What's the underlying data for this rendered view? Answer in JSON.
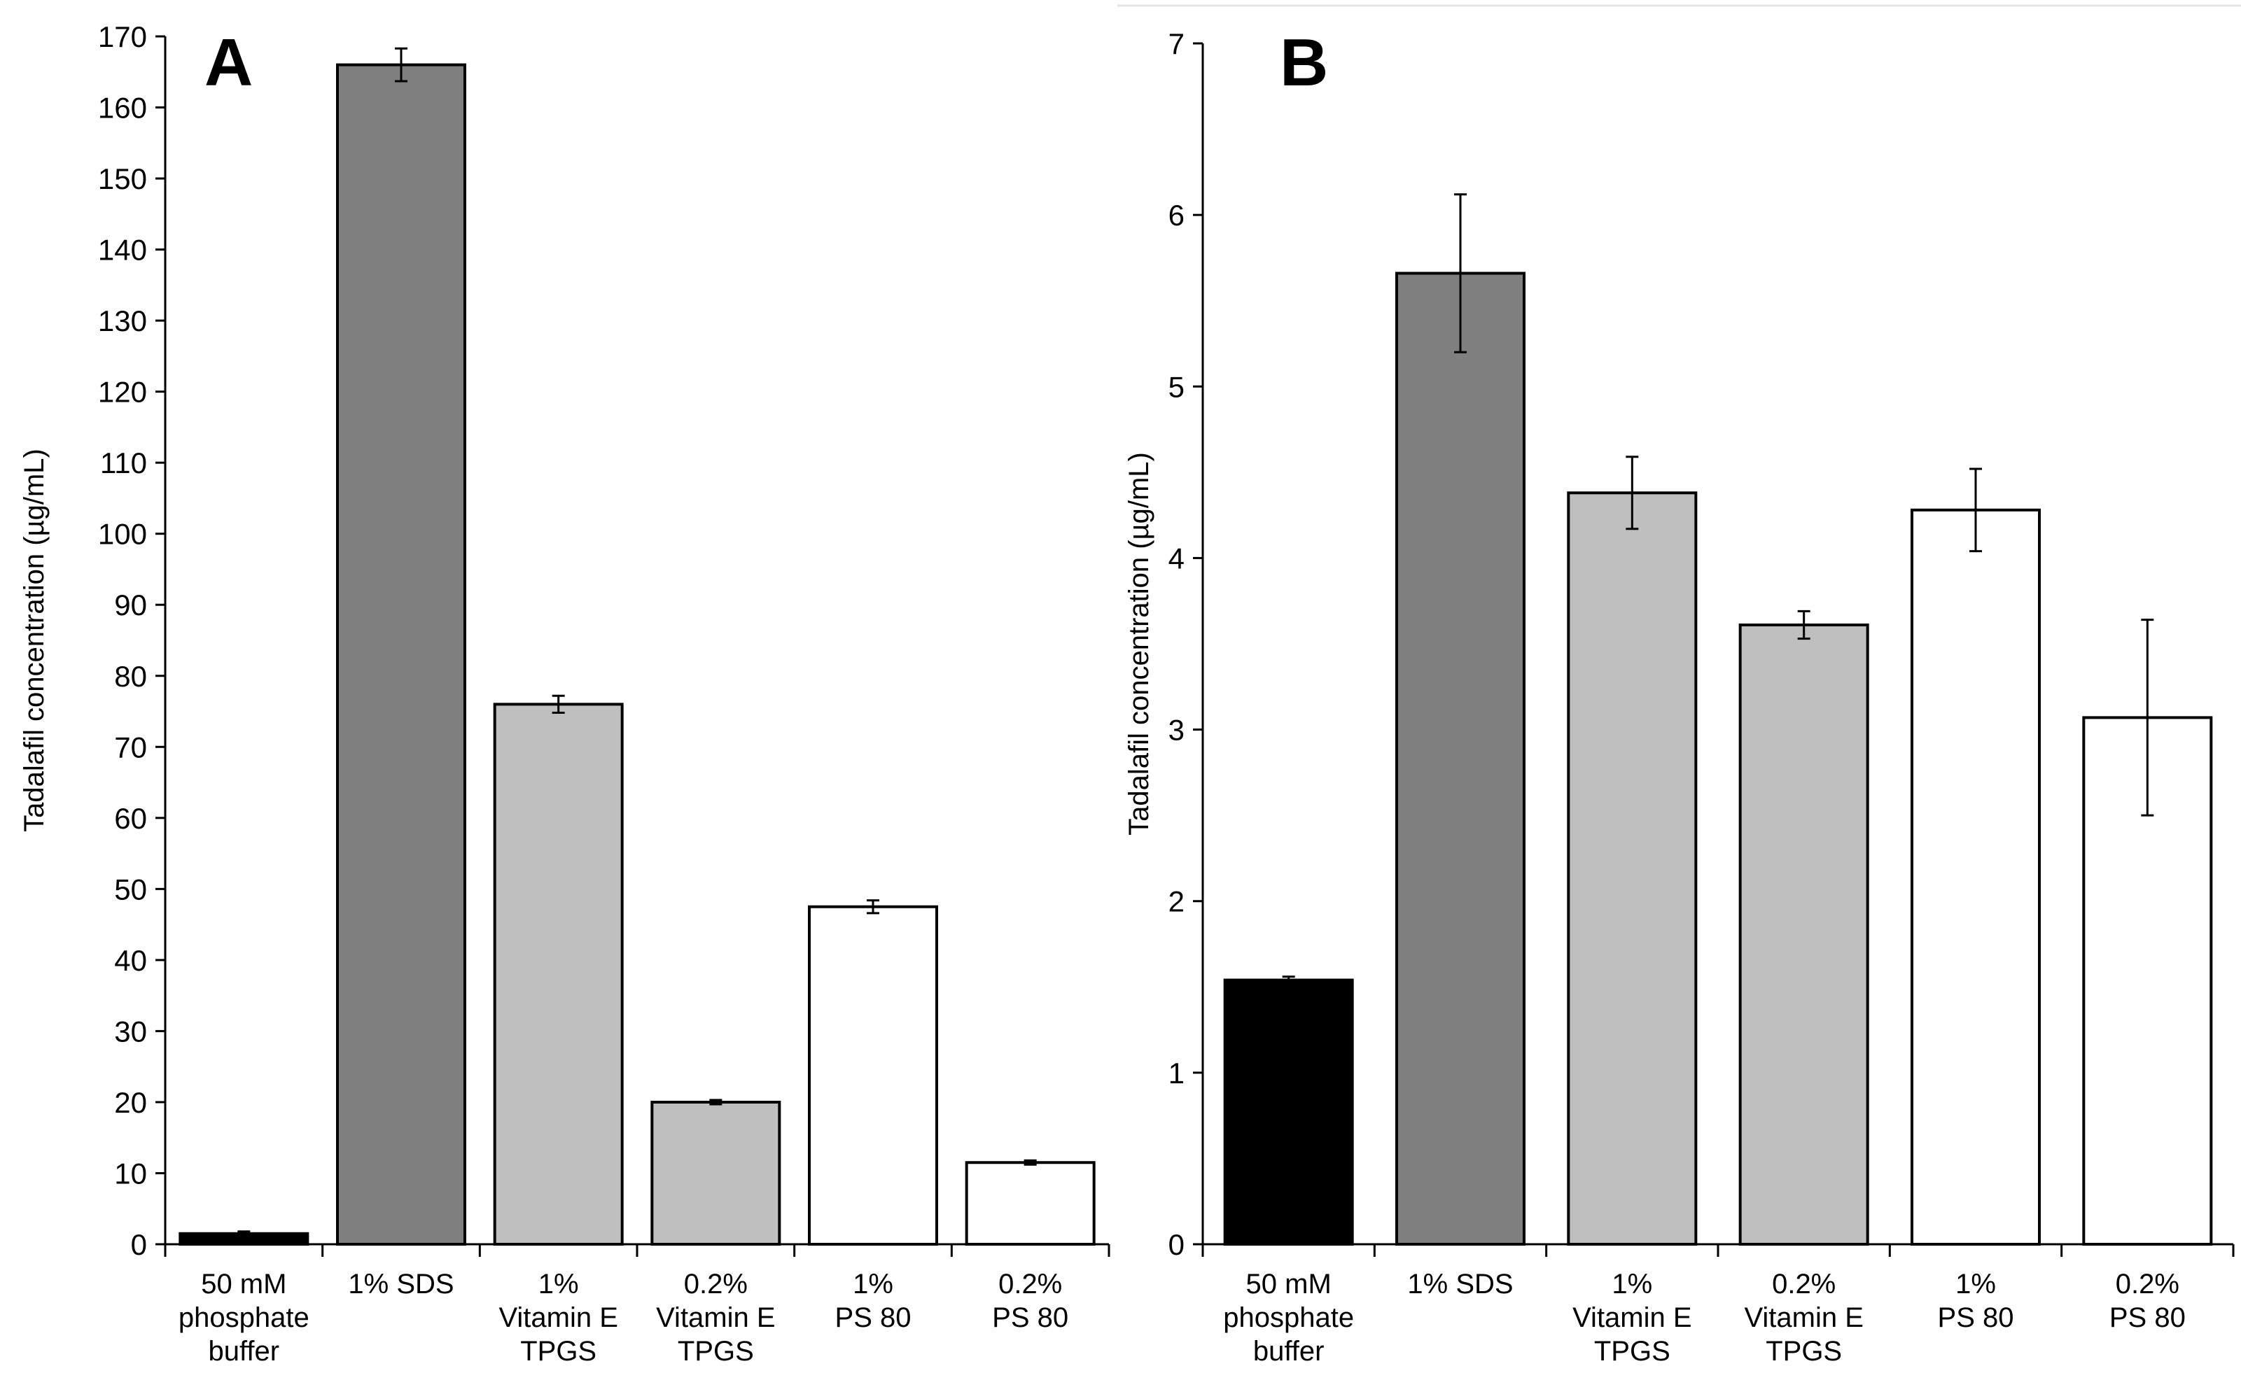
{
  "chart_data": [
    {
      "type": "bar",
      "panel": "A",
      "title": "",
      "ylabel": "Tadalafil concentration (µg/mL)",
      "xlabel": "",
      "ylim": [
        0,
        170
      ],
      "ytick_step": 10,
      "categories": [
        [
          "50 mM",
          "phosphate",
          "buffer"
        ],
        [
          "1% SDS"
        ],
        [
          "1%",
          "Vitamin E",
          "TPGS"
        ],
        [
          "0.2%",
          "Vitamin E",
          "TPGS"
        ],
        [
          "1%",
          "PS 80"
        ],
        [
          "0.2%",
          "PS 80"
        ]
      ],
      "values": [
        1.5,
        166,
        76,
        20,
        47.5,
        11.5
      ],
      "errors": [
        0.3,
        2.3,
        1.2,
        0.3,
        0.9,
        0.3
      ],
      "colors": [
        "#000000",
        "#7f7f7f",
        "#bfbfbf",
        "#bfbfbf",
        "#ffffff",
        "#ffffff"
      ],
      "grid": false,
      "legend": "none"
    },
    {
      "type": "bar",
      "panel": "B",
      "title": "",
      "ylabel": "Tadalafil concentration (µg/mL)",
      "xlabel": "",
      "ylim": [
        0,
        7
      ],
      "ytick_step": 1,
      "categories": [
        [
          "50 mM",
          "phosphate",
          "buffer"
        ],
        [
          "1% SDS"
        ],
        [
          "1%",
          "Vitamin E",
          "TPGS"
        ],
        [
          "0.2%",
          "Vitamin E",
          "TPGS"
        ],
        [
          "1%",
          "PS 80"
        ],
        [
          "0.2%",
          "PS 80"
        ]
      ],
      "values": [
        1.54,
        5.66,
        4.38,
        3.61,
        4.28,
        3.07
      ],
      "errors": [
        0.02,
        0.46,
        0.21,
        0.08,
        0.24,
        0.57
      ],
      "colors": [
        "#000000",
        "#7f7f7f",
        "#bfbfbf",
        "#bfbfbf",
        "#ffffff",
        "#ffffff"
      ],
      "grid": false,
      "legend": "none"
    }
  ]
}
